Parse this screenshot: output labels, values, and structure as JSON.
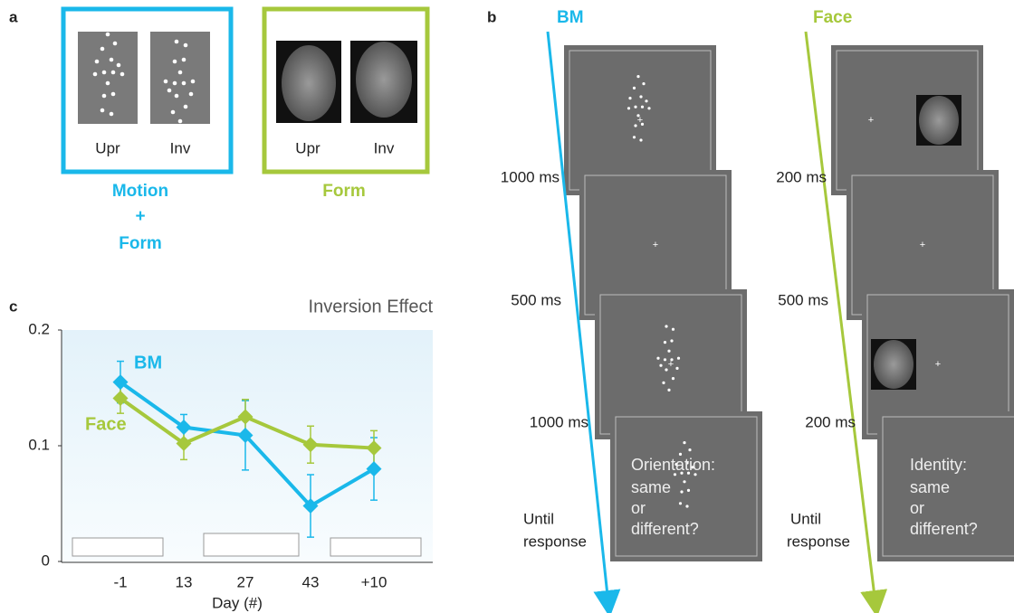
{
  "panel_a": {
    "label": "a",
    "upright": "Upr",
    "inverted": "Inv",
    "motion_group": [
      "Motion",
      "+",
      "Form"
    ],
    "form_group": "Form"
  },
  "panel_b": {
    "label": "b",
    "bm": {
      "title": "BM",
      "durations": [
        "1000 ms",
        "500 ms",
        "1000 ms"
      ],
      "final": [
        "Until",
        "response"
      ],
      "prompt": [
        "Orientation:",
        "same",
        "or",
        "different?"
      ]
    },
    "face": {
      "title": "Face",
      "durations": [
        "200 ms",
        "500 ms",
        "200 ms"
      ],
      "final": [
        "Until",
        "response"
      ],
      "prompt": [
        "Identity:",
        "same",
        "or",
        "different?"
      ]
    }
  },
  "panel_c_label": "c",
  "chart_data": {
    "type": "line",
    "title": "Inversion Effect",
    "x_label": "Day (#)",
    "categories": [
      "-1",
      "13",
      "27",
      "43",
      "+10"
    ],
    "ylim": [
      0,
      0.2
    ],
    "yticks": [
      0,
      0.1,
      0.2
    ],
    "series": [
      {
        "name": "BM",
        "color": "#1ab8ea",
        "values": [
          0.155,
          0.116,
          0.109,
          0.048,
          0.08
        ],
        "errors": [
          0.018,
          0.011,
          0.03,
          0.027,
          0.027
        ]
      },
      {
        "name": "Face",
        "color": "#a6c83c",
        "values": [
          0.141,
          0.102,
          0.125,
          0.101,
          0.098
        ],
        "errors": [
          0.013,
          0.014,
          0.015,
          0.016,
          0.015
        ]
      }
    ]
  }
}
